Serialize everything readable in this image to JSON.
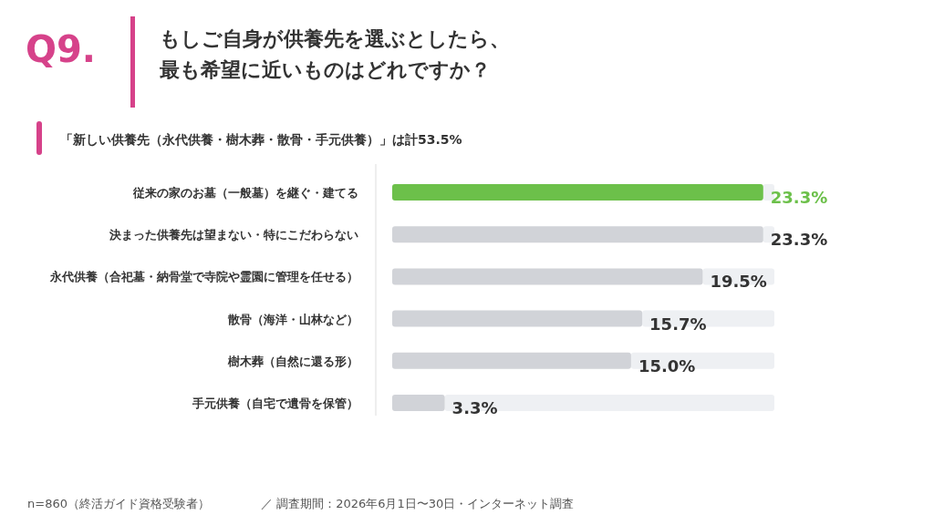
{
  "chart_data": {
    "type": "bar",
    "orientation": "horizontal",
    "title": "もしご自身が供養先を選ぶとしたら、最も希望に近いものはどれですか？",
    "subtitle": "「新しい供養先（永代供養・樹木葬・散骨・手元供養）」は計53.5%",
    "annotations": [
      "Q9.",
      "n=860（終活ガイド資格受験者）",
      "／  調査期間：2026年6月1日〜30日・インターネット調査"
    ],
    "categories": [
      "従来の家のお墓（一般墓）を継ぐ・建てる",
      "決まった供養先は望まない・特にこだわらない",
      "永代供養（合祀墓・納骨堂で寺院や霊園に管理を任せる）",
      "散骨（海洋・山林など）",
      "樹木葬（自然に還る形）",
      "手元供養（自宅で遺骨を保管）"
    ],
    "values": [
      23.3,
      23.3,
      19.5,
      15.7,
      15.0,
      3.3
    ],
    "value_labels": [
      "23.3%",
      "23.3%",
      "19.5%",
      "15.7%",
      "15.0%",
      "3.3%"
    ],
    "colors": [
      "#6cc04a",
      "#d1d3d8",
      "#d1d3d8",
      "#d1d3d8",
      "#d1d3d8",
      "#d1d3d8"
    ],
    "xlim": [
      0,
      24
    ]
  }
}
